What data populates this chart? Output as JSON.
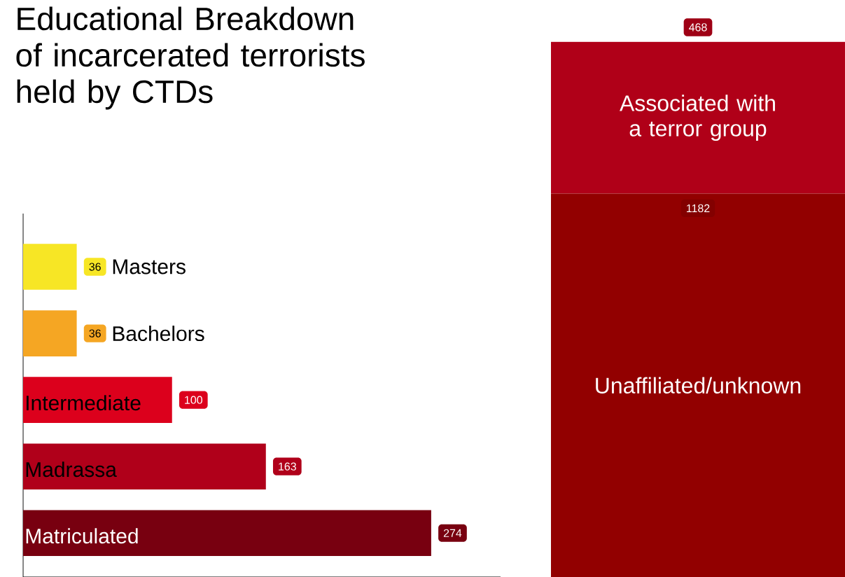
{
  "chart_data": [
    {
      "type": "bar",
      "orientation": "horizontal",
      "title": "Educational Breakdown of incarcerated terrorists held by CTDs",
      "categories": [
        "Masters",
        "Bachelors",
        "Intermediate",
        "Madrassa",
        "Matriculated"
      ],
      "values": [
        36,
        36,
        100,
        163,
        274
      ],
      "colors": [
        "#f7e625",
        "#f5a623",
        "#dc001c",
        "#b0001a",
        "#780010"
      ],
      "data_labels": true,
      "tick_labels": false
    },
    {
      "type": "bar",
      "stacked": true,
      "categories": [
        null
      ],
      "series": [
        {
          "name": "Unaffiliated/unknown",
          "color": "#920000",
          "values": [
            1182
          ]
        },
        {
          "name": "Associated with a terror group",
          "color": "#b00018",
          "values": [
            468
          ]
        }
      ],
      "data_labels": true,
      "tick_labels": false
    }
  ]
}
